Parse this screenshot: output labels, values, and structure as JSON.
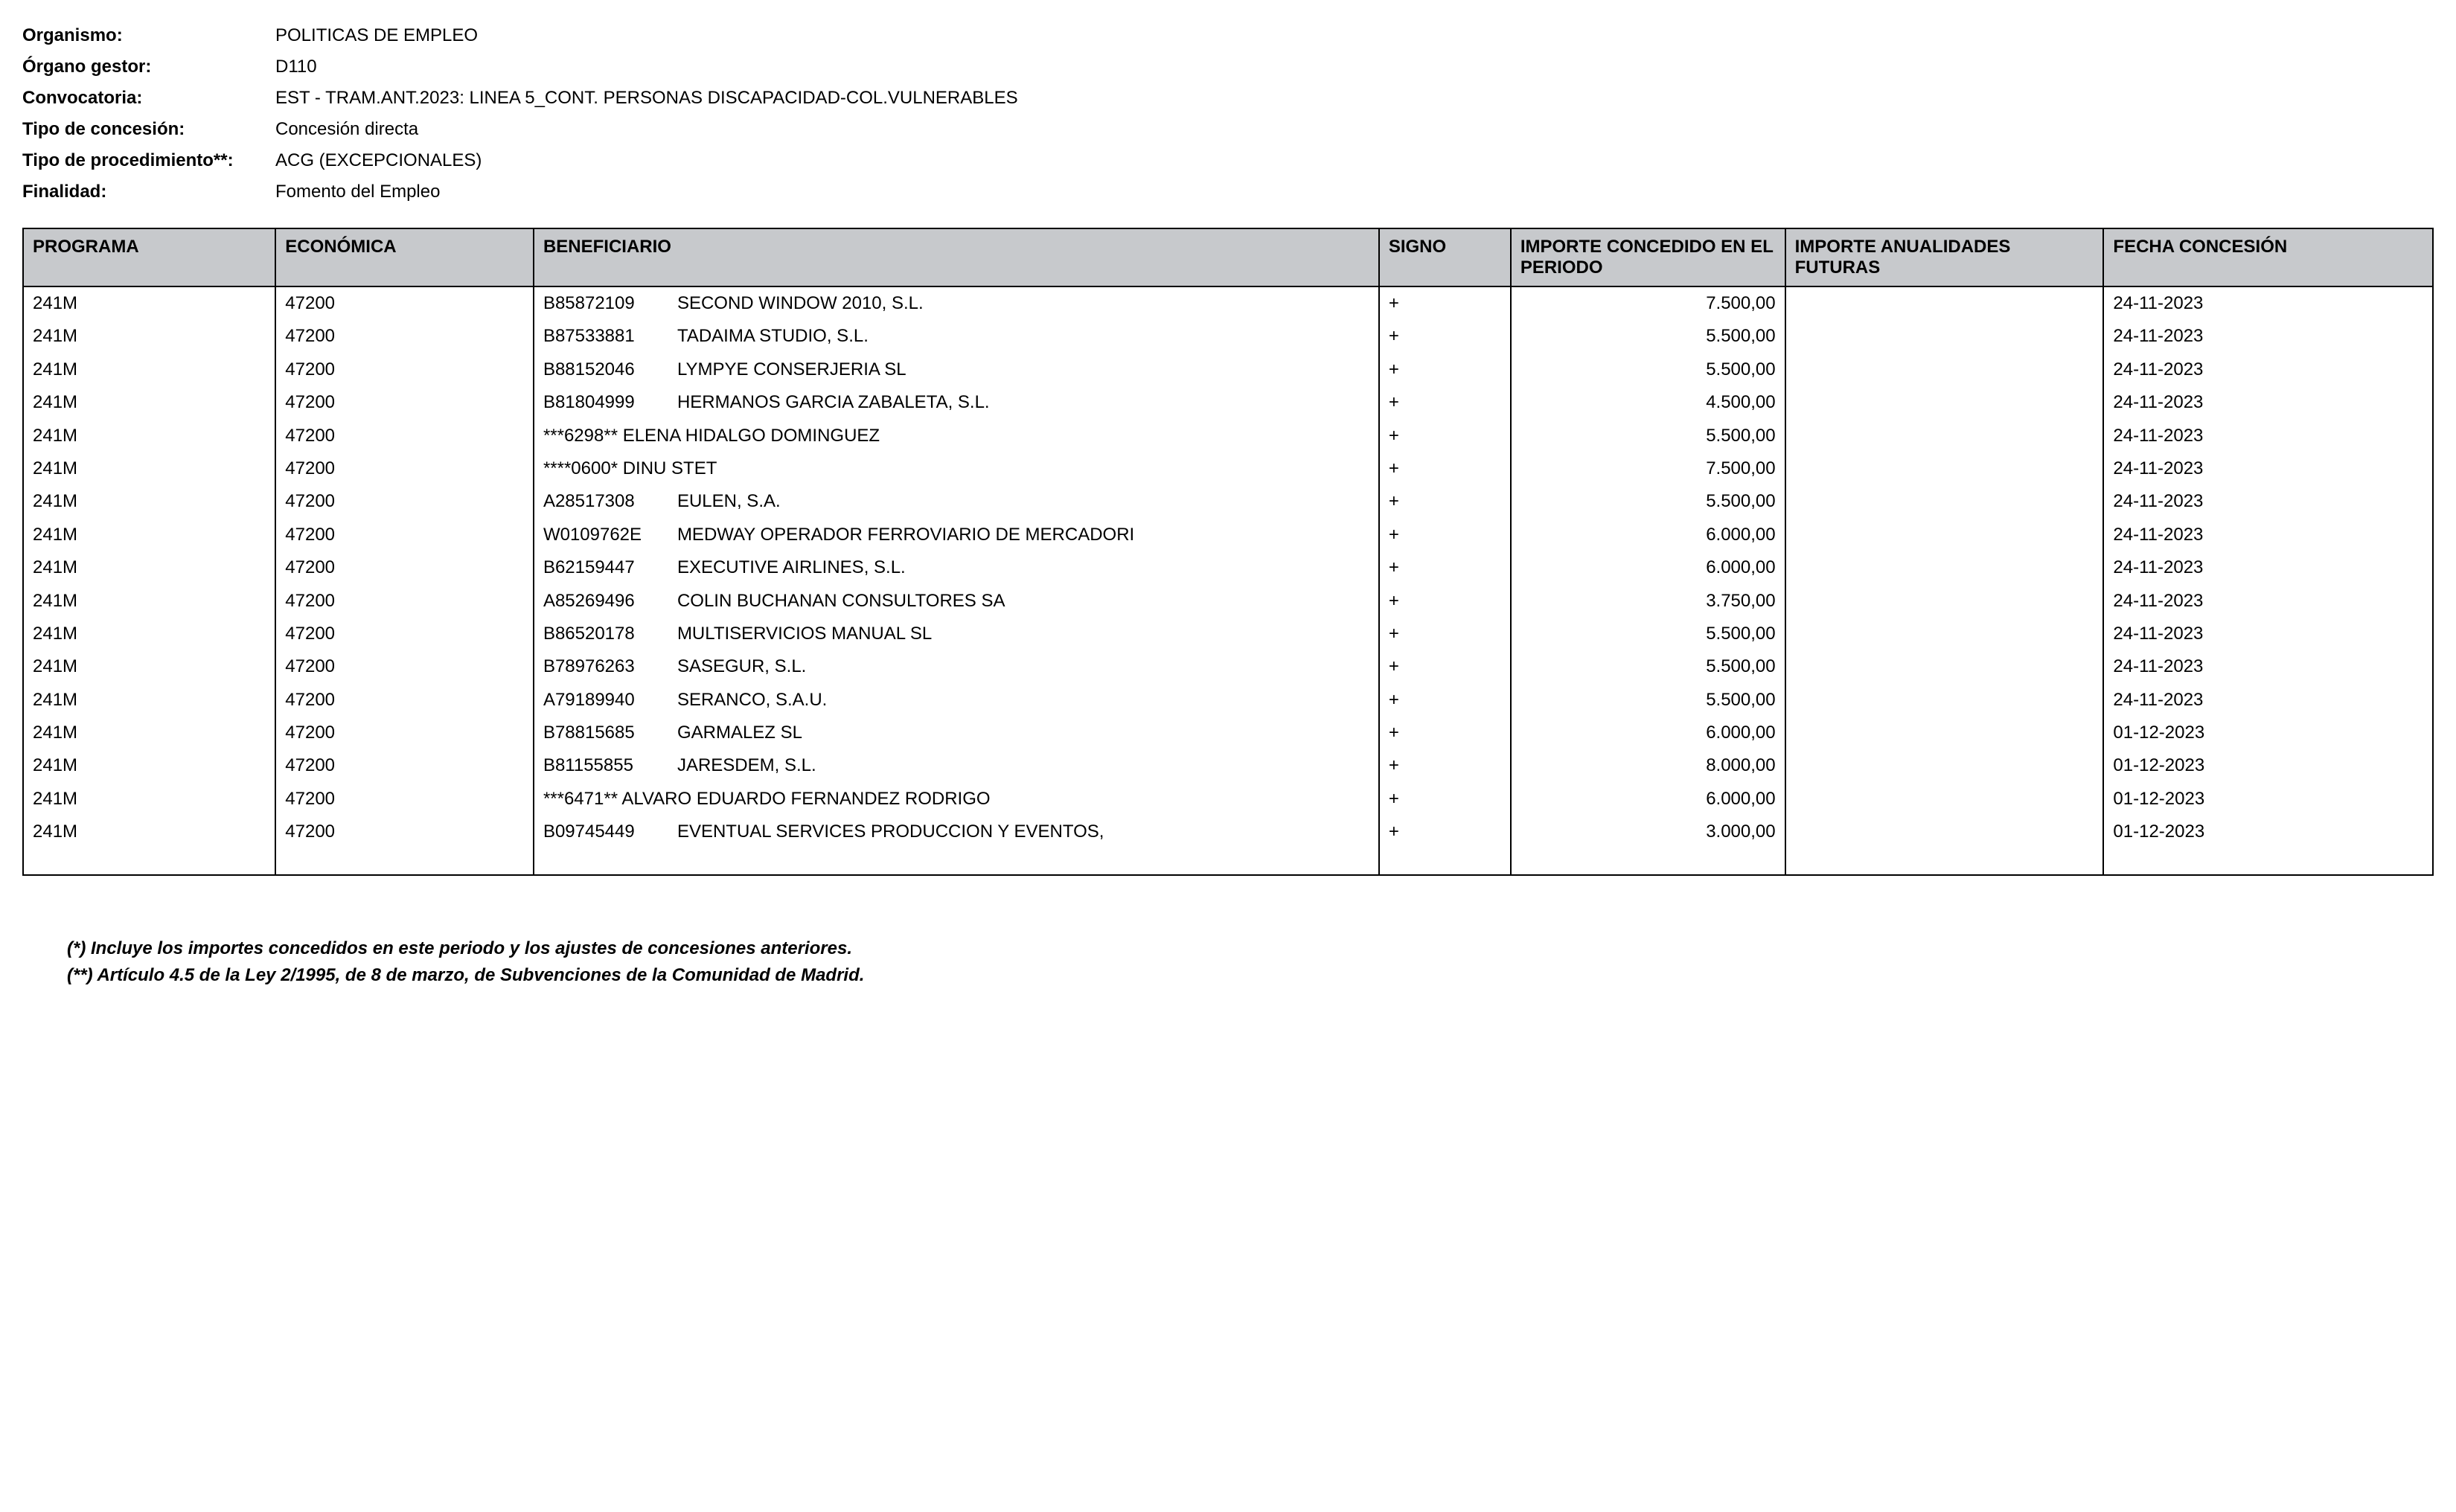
{
  "header": {
    "fields": [
      {
        "label": "Organismo:",
        "value": "POLITICAS DE EMPLEO"
      },
      {
        "label": "Órgano gestor:",
        "value": "D110"
      },
      {
        "label": "Convocatoria:",
        "value": "EST - TRAM.ANT.2023: LINEA 5_CONT. PERSONAS DISCAPACIDAD-COL.VULNERABLES"
      },
      {
        "label": "Tipo de concesión:",
        "value": "Concesión directa"
      },
      {
        "label": "Tipo de procedimiento**:",
        "value": "ACG (EXCEPCIONALES)"
      },
      {
        "label": "Finalidad:",
        "value": "Fomento del Empleo"
      }
    ]
  },
  "table": {
    "columns": [
      {
        "key": "programa",
        "label": "PROGRAMA",
        "class": "col-programa",
        "align": "left"
      },
      {
        "key": "economica",
        "label": "ECONÓMICA",
        "class": "col-economica",
        "align": "left"
      },
      {
        "key": "beneficiario",
        "label": "BENEFICIARIO",
        "class": "col-beneficiario",
        "align": "left"
      },
      {
        "key": "signo",
        "label": "SIGNO",
        "class": "col-signo",
        "align": "left"
      },
      {
        "key": "importe_periodo",
        "label": "IMPORTE CONCEDIDO EN EL PERIODO",
        "class": "col-importe-periodo",
        "align": "right"
      },
      {
        "key": "importe_futuras",
        "label": "IMPORTE ANUALIDADES FUTURAS",
        "class": "col-importe-futuras",
        "align": "right"
      },
      {
        "key": "fecha",
        "label": "FECHA CONCESIÓN",
        "class": "col-fecha",
        "align": "left"
      }
    ],
    "rows": [
      {
        "programa": "241M",
        "economica": "47200",
        "bene_id": "B85872109",
        "bene_name": "SECOND WINDOW 2010, S.L.",
        "signo": "+",
        "importe_periodo": "7.500,00",
        "importe_futuras": "",
        "fecha": "24-11-2023"
      },
      {
        "programa": "241M",
        "economica": "47200",
        "bene_id": "B87533881",
        "bene_name": "TADAIMA STUDIO, S.L.",
        "signo": "+",
        "importe_periodo": "5.500,00",
        "importe_futuras": "",
        "fecha": "24-11-2023"
      },
      {
        "programa": "241M",
        "economica": "47200",
        "bene_id": "B88152046",
        "bene_name": "LYMPYE CONSERJERIA SL",
        "signo": "+",
        "importe_periodo": "5.500,00",
        "importe_futuras": "",
        "fecha": "24-11-2023"
      },
      {
        "programa": "241M",
        "economica": "47200",
        "bene_id": "B81804999",
        "bene_name": "HERMANOS GARCIA ZABALETA, S.L.",
        "signo": "+",
        "importe_periodo": "4.500,00",
        "importe_futuras": "",
        "fecha": "24-11-2023"
      },
      {
        "programa": "241M",
        "economica": "47200",
        "bene_id": "***6298**",
        "bene_name": "ELENA HIDALGO DOMINGUEZ",
        "signo": "+",
        "importe_periodo": "5.500,00",
        "importe_futuras": "",
        "fecha": "24-11-2023",
        "no_id_gap": true
      },
      {
        "programa": "241M",
        "economica": "47200",
        "bene_id": "****0600*",
        "bene_name": "DINU STET",
        "signo": "+",
        "importe_periodo": "7.500,00",
        "importe_futuras": "",
        "fecha": "24-11-2023",
        "no_id_gap": true
      },
      {
        "programa": "241M",
        "economica": "47200",
        "bene_id": "A28517308",
        "bene_name": "EULEN, S.A.",
        "signo": "+",
        "importe_periodo": "5.500,00",
        "importe_futuras": "",
        "fecha": "24-11-2023"
      },
      {
        "programa": "241M",
        "economica": "47200",
        "bene_id": "W0109762E",
        "bene_name": "MEDWAY OPERADOR FERROVIARIO DE MERCADORI",
        "signo": "+",
        "importe_periodo": "6.000,00",
        "importe_futuras": "",
        "fecha": "24-11-2023"
      },
      {
        "programa": "241M",
        "economica": "47200",
        "bene_id": "B62159447",
        "bene_name": "EXECUTIVE AIRLINES, S.L.",
        "signo": "+",
        "importe_periodo": "6.000,00",
        "importe_futuras": "",
        "fecha": "24-11-2023"
      },
      {
        "programa": "241M",
        "economica": "47200",
        "bene_id": "A85269496",
        "bene_name": "COLIN BUCHANAN CONSULTORES SA",
        "signo": "+",
        "importe_periodo": "3.750,00",
        "importe_futuras": "",
        "fecha": "24-11-2023"
      },
      {
        "programa": "241M",
        "economica": "47200",
        "bene_id": "B86520178",
        "bene_name": "MULTISERVICIOS MANUAL SL",
        "signo": "+",
        "importe_periodo": "5.500,00",
        "importe_futuras": "",
        "fecha": "24-11-2023"
      },
      {
        "programa": "241M",
        "economica": "47200",
        "bene_id": "B78976263",
        "bene_name": "SASEGUR, S.L.",
        "signo": "+",
        "importe_periodo": "5.500,00",
        "importe_futuras": "",
        "fecha": "24-11-2023"
      },
      {
        "programa": "241M",
        "economica": "47200",
        "bene_id": "A79189940",
        "bene_name": "SERANCO, S.A.U.",
        "signo": "+",
        "importe_periodo": "5.500,00",
        "importe_futuras": "",
        "fecha": "24-11-2023"
      },
      {
        "programa": "241M",
        "economica": "47200",
        "bene_id": "B78815685",
        "bene_name": "GARMALEZ SL",
        "signo": "+",
        "importe_periodo": "6.000,00",
        "importe_futuras": "",
        "fecha": "01-12-2023"
      },
      {
        "programa": "241M",
        "economica": "47200",
        "bene_id": "B81155855",
        "bene_name": "JARESDEM, S.L.",
        "signo": "+",
        "importe_periodo": "8.000,00",
        "importe_futuras": "",
        "fecha": "01-12-2023"
      },
      {
        "programa": "241M",
        "economica": "47200",
        "bene_id": "***6471**",
        "bene_name": "ALVARO EDUARDO FERNANDEZ RODRIGO",
        "signo": "+",
        "importe_periodo": "6.000,00",
        "importe_futuras": "",
        "fecha": "01-12-2023",
        "no_id_gap": true
      },
      {
        "programa": "241M",
        "economica": "47200",
        "bene_id": "B09745449",
        "bene_name": "EVENTUAL SERVICES PRODUCCION Y EVENTOS,",
        "signo": "+",
        "importe_periodo": "3.000,00",
        "importe_futuras": "",
        "fecha": "01-12-2023"
      }
    ]
  },
  "footnotes": [
    "(*) Incluye los importes concedidos en este periodo y los ajustes de concesiones anteriores.",
    "(**) Artículo 4.5 de la Ley 2/1995, de 8 de marzo, de Subvenciones de la Comunidad de Madrid."
  ]
}
